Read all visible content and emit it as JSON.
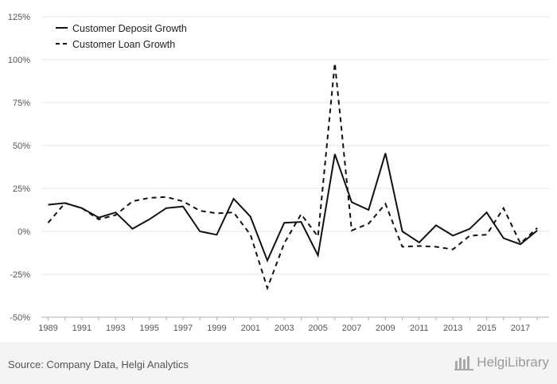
{
  "chart_data": {
    "type": "line",
    "title": "",
    "xlabel": "",
    "ylabel": "",
    "x": [
      1989,
      1990,
      1991,
      1992,
      1993,
      1994,
      1995,
      1996,
      1997,
      1998,
      1999,
      2000,
      2001,
      2002,
      2003,
      2004,
      2005,
      2006,
      2007,
      2008,
      2009,
      2010,
      2011,
      2012,
      2013,
      2014,
      2015,
      2016,
      2017,
      2018
    ],
    "x_ticks": [
      1989,
      1991,
      1993,
      1995,
      1997,
      1999,
      2001,
      2003,
      2005,
      2007,
      2009,
      2011,
      2013,
      2015,
      2017
    ],
    "xlim": [
      1988.6,
      2018.7
    ],
    "ylim": [
      -50,
      125
    ],
    "y_ticks": [
      -50,
      -25,
      0,
      25,
      50,
      75,
      100,
      125
    ],
    "y_tick_labels": [
      "-50%",
      "-25%",
      "0%",
      "25%",
      "50%",
      "75%",
      "100%",
      "125%"
    ],
    "grid": "horizontal",
    "legend_position": "top-left",
    "series": [
      {
        "name": "Customer Deposit Growth",
        "line_style": "solid",
        "color": "#111111",
        "values": [
          15.5,
          16.5,
          13.5,
          8,
          11,
          1.5,
          7,
          13.5,
          14.5,
          0,
          -2,
          19,
          8.5,
          -17,
          5,
          5.5,
          -14,
          45,
          17,
          12.5,
          45.5,
          0,
          -6.5,
          3.5,
          -2.5,
          1.5,
          11,
          -4,
          -7.5,
          0.5
        ]
      },
      {
        "name": "Customer Loan Growth",
        "line_style": "dashed",
        "color": "#111111",
        "values": [
          5,
          16.5,
          13.5,
          7,
          9.5,
          17.5,
          19.5,
          20,
          17.5,
          12,
          10.5,
          11,
          -2,
          -33,
          -7,
          10,
          -3,
          98,
          0.5,
          4.5,
          16,
          -9,
          -8.5,
          -9,
          -10.5,
          -2.5,
          -2,
          13.5,
          -7,
          2
        ]
      }
    ]
  },
  "footer": {
    "source": "Source: Company Data, Helgi Analytics",
    "brand": "HelgiLibrary"
  }
}
